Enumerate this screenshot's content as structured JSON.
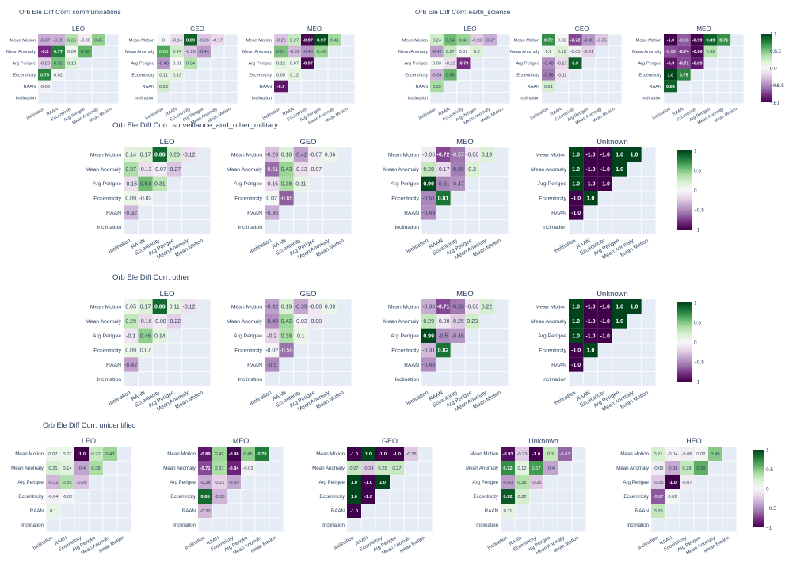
{
  "colors": {
    "plot_bg": "#e5ecf6",
    "text": "#2a3f5f",
    "colorscale": [
      "#40004b",
      "#762a83",
      "#9970ab",
      "#c2a5cf",
      "#e7d4e8",
      "#f7f7f7",
      "#d9f0d3",
      "#a6dba0",
      "#5aae61",
      "#1b7837",
      "#00441b"
    ]
  },
  "colorbar_ticks": [
    "1",
    "0.5",
    "0",
    "−0.5",
    "−1"
  ],
  "chart_data": [
    {
      "type": "heatmap",
      "title": "Orb Ele Diff Corr: communications",
      "x_labels": [
        "Inclination",
        "RAAN",
        "Eccentricity",
        "Arg Perigee",
        "Mean Anomaly",
        "Mean Motion"
      ],
      "y_labels": [
        "Mean Motion",
        "Mean Anomaly",
        "Arg Perigee",
        "Eccentricity",
        "RAAN",
        "Inclination"
      ],
      "zlim": [
        -1,
        1
      ],
      "panels": [
        {
          "title": "LEO",
          "values": [
            [
              -0.37,
              -0.35,
              0.35,
              -0.06,
              0.45
            ],
            [
              -0.8,
              0.77,
              0.04,
              0.58
            ],
            [
              -0.23,
              0.52,
              0.18
            ],
            [
              0.75,
              0.02
            ],
            [
              -0.03
            ]
          ]
        },
        {
          "title": "GEO",
          "values": [
            [
              -0.0,
              -0.14,
              0.89,
              -0.26,
              -0.17
            ],
            [
              0.63,
              0.24,
              -0.26,
              -0.44
            ],
            [
              -0.46,
              0.01,
              0.34
            ],
            [
              0.11,
              0.13
            ],
            [
              0.23
            ]
          ]
        },
        {
          "title": "MEO",
          "values": [
            [
              -0.26,
              0.27,
              -0.97,
              0.97,
              0.41
            ],
            [
              0.51,
              -0.31,
              -0.46,
              0.43
            ],
            [
              0.12,
              0.07,
              -0.97
            ],
            [
              0.05,
              0.12
            ],
            [
              -0.9
            ]
          ]
        }
      ]
    },
    {
      "type": "heatmap",
      "title": "Orb Ele Diff Corr: earth_science",
      "x_labels": [
        "Inclination",
        "RAAN",
        "Eccentricity",
        "Arg Perigee",
        "Mean Anomaly",
        "Mean Motion"
      ],
      "y_labels": [
        "Mean Motion",
        "Mean Anomaly",
        "Arg Perigee",
        "Eccentricity",
        "RAAN",
        "Inclination"
      ],
      "zlim": [
        -1,
        1
      ],
      "panels": [
        {
          "title": "LEO",
          "values": [
            [
              0.24,
              0.54,
              0.43,
              -0.23,
              -0.37
            ],
            [
              -0.42,
              0.27,
              0.01,
              0.2
            ],
            [
              0.03,
              -0.13,
              -0.79
            ],
            [
              -0.34,
              0.56
            ],
            [
              0.39
            ]
          ]
        },
        {
          "title": "GEO",
          "values": [
            [
              0.72,
              0.02,
              -0.72,
              -0.45,
              -0.25
            ],
            [
              0.1,
              0.19,
              -0.05,
              -0.21
            ],
            [
              -0.49,
              -0.17,
              0.9
            ],
            [
              -0.56,
              -0.11
            ],
            [
              0.21
            ]
          ]
        },
        {
          "title": "MEO",
          "values": [
            [
              -1.0,
              -0.66,
              -0.99,
              0.89,
              0.71
            ],
            [
              -0.69,
              -0.74,
              -0.96,
              0.32
            ],
            [
              -0.9,
              -0.71,
              -0.89
            ],
            [
              1.0,
              0.75
            ],
            [
              0.89
            ]
          ]
        }
      ]
    },
    {
      "type": "heatmap",
      "title": "Orb Ele Diff Corr: surveillance_and_other_military",
      "x_labels": [
        "Inclination",
        "RAAN",
        "Eccentricity",
        "Arg Perigee",
        "Mean Anomaly",
        "Mean Motion"
      ],
      "y_labels": [
        "Mean Motion",
        "Mean Anomaly",
        "Arg Perigee",
        "Eccentricity",
        "RAAN",
        "Inclination"
      ],
      "zlim": [
        -1,
        1
      ],
      "panels": [
        {
          "title": "LEO",
          "values": [
            [
              0.14,
              0.17,
              0.86,
              0.23,
              -0.12
            ],
            [
              0.37,
              -0.13,
              -0.07,
              -0.27
            ],
            [
              -0.15,
              0.54,
              0.31
            ],
            [
              0.09,
              -0.02
            ],
            [
              -0.32
            ]
          ]
        },
        {
          "title": "GEO",
          "values": [
            [
              -0.28,
              0.18,
              -0.42,
              -0.07,
              0.06
            ],
            [
              -0.61,
              0.43,
              -0.13,
              -0.07
            ],
            [
              -0.15,
              0.38,
              0.11
            ],
            [
              0.02,
              -0.65
            ],
            [
              -0.36
            ]
          ]
        },
        {
          "title": "MEO",
          "values": [
            [
              -0.06,
              -0.72,
              -0.57,
              -0.08,
              0.19
            ],
            [
              0.28,
              -0.17,
              -0.55,
              0.2
            ],
            [
              0.99,
              -0.51,
              -0.47
            ],
            [
              -0.51,
              0.81
            ],
            [
              -0.49
            ]
          ]
        },
        {
          "title": "Unknown",
          "values": [
            [
              1.0,
              -1.0,
              -1.0,
              1.0,
              1.0
            ],
            [
              1.0,
              -1.0,
              -1.0,
              1.0
            ],
            [
              1.0,
              -1.0,
              -1.0
            ],
            [
              -1.0,
              1.0
            ],
            [
              -1.0
            ]
          ]
        }
      ]
    },
    {
      "type": "heatmap",
      "title": "Orb Ele Diff Corr: other",
      "x_labels": [
        "Inclination",
        "RAAN",
        "Eccentricity",
        "Arg Perigee",
        "Mean Anomaly",
        "Mean Motion"
      ],
      "y_labels": [
        "Mean Motion",
        "Mean Anomaly",
        "Arg Perigee",
        "Eccentricity",
        "RAAN",
        "Inclination"
      ],
      "zlim": [
        -1,
        1
      ],
      "panels": [
        {
          "title": "LEO",
          "values": [
            [
              0.05,
              0.17,
              0.86,
              0.11,
              -0.12
            ],
            [
              0.29,
              -0.16,
              -0.08,
              -0.22
            ],
            [
              -0.1,
              0.46,
              0.14
            ],
            [
              0.09,
              0.07
            ],
            [
              -0.42
            ]
          ]
        },
        {
          "title": "GEO",
          "values": [
            [
              -0.42,
              0.19,
              -0.39,
              -0.08,
              0.09
            ],
            [
              -0.49,
              0.42,
              -0.03,
              -0.08
            ],
            [
              -0.2,
              0.38,
              0.1
            ],
            [
              -0.02,
              -0.59
            ],
            [
              -0.5
            ]
          ]
        },
        {
          "title": "MEO",
          "values": [
            [
              -0.36,
              -0.71,
              -0.56,
              -0.08,
              0.22
            ],
            [
              0.29,
              -0.08,
              -0.25,
              0.23
            ],
            [
              0.99,
              -0.5,
              -0.46
            ],
            [
              -0.31,
              0.82
            ],
            [
              -0.48
            ]
          ]
        },
        {
          "title": "Unknown",
          "values": [
            [
              1.0,
              -1.0,
              -1.0,
              1.0,
              1.0
            ],
            [
              1.0,
              -1.0,
              -1.0,
              1.0
            ],
            [
              1.0,
              -1.0,
              -1.0
            ],
            [
              -1.0,
              1.0
            ],
            [
              -1.0
            ]
          ]
        }
      ]
    },
    {
      "type": "heatmap",
      "title": "Orb Ele Diff Corr: unidentified",
      "x_labels": [
        "Inclination",
        "RAAN",
        "Eccentricity",
        "Arg Perigee",
        "Mean Anomaly",
        "Mean Motion"
      ],
      "y_labels": [
        "Mean Motion",
        "Mean Anomaly",
        "Arg Perigee",
        "Eccentricity",
        "RAAN",
        "Inclination"
      ],
      "zlim": [
        -1,
        1
      ],
      "panels": [
        {
          "title": "LEO",
          "values": [
            [
              0.07,
              0.07,
              -1.0,
              0.27,
              0.43
            ],
            [
              0.21,
              0.14,
              -0.4,
              0.38
            ],
            [
              -0.32,
              0.35,
              -0.28
            ],
            [
              -0.04,
              -0.02
            ],
            [
              0.1
            ]
          ]
        },
        {
          "title": "MEO",
          "values": [
            [
              -0.89,
              0.42,
              -0.98,
              0.46,
              0.78
            ],
            [
              -0.71,
              0.37,
              -0.84,
              -0.03
            ],
            [
              -0.38,
              -0.21,
              -0.39
            ],
            [
              0.85,
              -0.33
            ],
            [
              -0.32
            ]
          ]
        },
        {
          "title": "GEO",
          "values": [
            [
              -1.0,
              1.0,
              -1.0,
              -1.0,
              -0.25
            ],
            [
              0.27,
              -0.24,
              0.25,
              0.27
            ],
            [
              1.0,
              -1.0,
              1.0
            ],
            [
              1.0,
              -1.0
            ],
            [
              -1.0
            ]
          ]
        },
        {
          "title": "Unknown",
          "values": [
            [
              -0.93,
              -0.23,
              -1.0,
              0.3,
              -0.63
            ],
            [
              0.72,
              0.12,
              0.67,
              -0.4
            ],
            [
              -0.43,
              0.35,
              -0.25
            ],
            [
              0.92,
              0.22
            ],
            [
              0.11
            ]
          ]
        },
        {
          "title": "HEO",
          "values": [
            [
              0.21,
              -0.04,
              -0.06,
              0.02,
              0.48
            ],
            [
              -0.06,
              -0.38,
              0.29,
              0.59
            ],
            [
              -0.25,
              -1.0,
              -0.07
            ],
            [
              -0.67,
              0.02
            ],
            [
              0.29
            ]
          ]
        }
      ]
    }
  ]
}
